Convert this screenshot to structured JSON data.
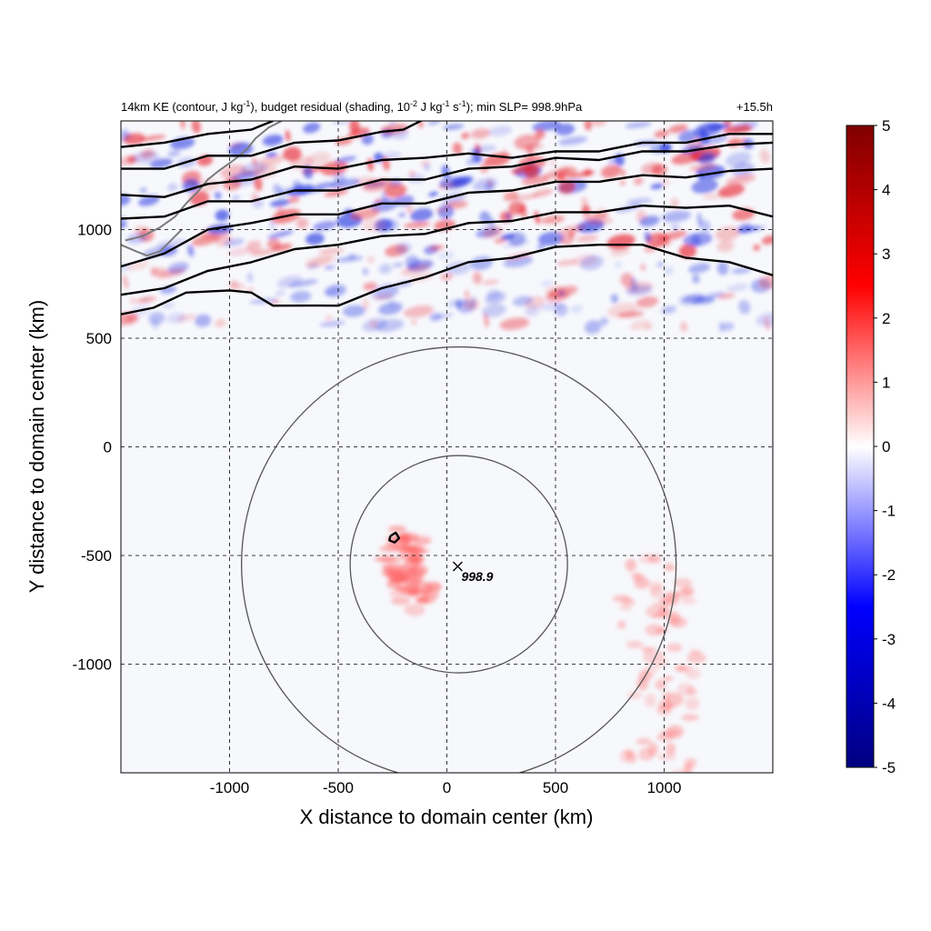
{
  "chart_data": {
    "type": "heatmap",
    "title_left": "14km KE (contour, J kg",
    "title_left_sup1": "-1",
    "title_left_2": "), budget residual (shading, 10",
    "title_left_sup2": "-2",
    "title_left_3": " J kg",
    "title_left_sup3": "-1",
    "title_left_4": " s",
    "title_left_sup4": "-1",
    "title_left_5": "); min SLP= 998.9hPa",
    "title_right": "+15.5h",
    "xlabel": "X distance to domain center (km)",
    "ylabel": "Y distance to domain center (km)",
    "xlim": [
      -1500,
      1500
    ],
    "ylim": [
      -1500,
      1500
    ],
    "xticks": [
      -1000,
      -500,
      0,
      500,
      1000
    ],
    "yticks": [
      1000,
      500,
      0,
      -500,
      -1000
    ],
    "grid": true,
    "colorbar": {
      "min": -5,
      "max": 5,
      "ticks": [
        5,
        4,
        3,
        2,
        1,
        0,
        -1,
        -2,
        -3,
        -4,
        -5
      ],
      "colors": [
        "#00007f",
        "#0000ff",
        "#ffffff",
        "#ff0000",
        "#7f0000"
      ]
    },
    "storm_center": {
      "x": 50,
      "y": -550,
      "label": "998.9"
    },
    "rings": [
      {
        "x": 55,
        "y": -540,
        "radius": 500
      },
      {
        "x": 55,
        "y": -540,
        "radius": 1000
      }
    ],
    "ke_contours": [
      [
        [
          -1500,
          600
        ],
        [
          -1350,
          650
        ],
        [
          -1200,
          700
        ],
        [
          -1000,
          730
        ],
        [
          -900,
          700
        ],
        [
          -800,
          660
        ],
        [
          -600,
          640
        ],
        [
          -500,
          660
        ],
        [
          -300,
          720
        ],
        [
          -100,
          790
        ],
        [
          100,
          840
        ],
        [
          300,
          880
        ],
        [
          500,
          910
        ],
        [
          700,
          940
        ],
        [
          900,
          920
        ],
        [
          1100,
          880
        ],
        [
          1300,
          840
        ],
        [
          1500,
          800
        ]
      ],
      [
        [
          -1500,
          690
        ],
        [
          -1300,
          740
        ],
        [
          -1100,
          800
        ],
        [
          -900,
          860
        ],
        [
          -700,
          900
        ],
        [
          -500,
          940
        ],
        [
          -300,
          960
        ],
        [
          -100,
          990
        ],
        [
          100,
          1020
        ],
        [
          300,
          1050
        ],
        [
          500,
          1070
        ],
        [
          700,
          1090
        ],
        [
          900,
          1100
        ],
        [
          1100,
          1110
        ],
        [
          1300,
          1100
        ],
        [
          1500,
          1070
        ]
      ],
      [
        [
          -1500,
          820
        ],
        [
          -1300,
          900
        ],
        [
          -1100,
          990
        ],
        [
          -900,
          1040
        ],
        [
          -700,
          1060
        ],
        [
          -500,
          1080
        ],
        [
          -300,
          1110
        ],
        [
          -100,
          1130
        ],
        [
          100,
          1160
        ],
        [
          300,
          1190
        ],
        [
          500,
          1210
        ],
        [
          700,
          1230
        ],
        [
          900,
          1240
        ],
        [
          1100,
          1250
        ],
        [
          1300,
          1260
        ],
        [
          1500,
          1290
        ]
      ],
      [
        [
          -1500,
          1040
        ],
        [
          -1300,
          1070
        ],
        [
          -1100,
          1120
        ],
        [
          -900,
          1140
        ],
        [
          -700,
          1170
        ],
        [
          -500,
          1190
        ],
        [
          -300,
          1220
        ],
        [
          -100,
          1240
        ],
        [
          100,
          1270
        ],
        [
          300,
          1300
        ],
        [
          500,
          1320
        ],
        [
          700,
          1330
        ],
        [
          900,
          1350
        ],
        [
          1100,
          1370
        ],
        [
          1300,
          1380
        ],
        [
          1500,
          1410
        ]
      ],
      [
        [
          -1500,
          1150
        ],
        [
          -1300,
          1160
        ],
        [
          -1100,
          1200
        ],
        [
          -900,
          1240
        ],
        [
          -700,
          1280
        ],
        [
          -500,
          1290
        ],
        [
          -300,
          1310
        ],
        [
          -100,
          1340
        ],
        [
          100,
          1340
        ],
        [
          300,
          1340
        ],
        [
          500,
          1350
        ],
        [
          700,
          1370
        ],
        [
          900,
          1390
        ],
        [
          1100,
          1410
        ],
        [
          1300,
          1430
        ],
        [
          1500,
          1450
        ]
      ],
      [
        [
          -1500,
          1270
        ],
        [
          -1300,
          1290
        ],
        [
          -1100,
          1330
        ],
        [
          -900,
          1350
        ],
        [
          -700,
          1390
        ],
        [
          -500,
          1420
        ],
        [
          -300,
          1440
        ],
        [
          -200,
          1470
        ],
        [
          -100,
          1500
        ]
      ],
      [
        [
          -1500,
          1380
        ],
        [
          -1300,
          1400
        ],
        [
          -1100,
          1440
        ],
        [
          -900,
          1460
        ],
        [
          -800,
          1500
        ]
      ],
      [
        [
          -260,
          -410
        ],
        [
          -235,
          -395
        ],
        [
          -220,
          -420
        ],
        [
          -240,
          -440
        ],
        [
          -265,
          -430
        ],
        [
          -260,
          -410
        ]
      ]
    ]
  }
}
